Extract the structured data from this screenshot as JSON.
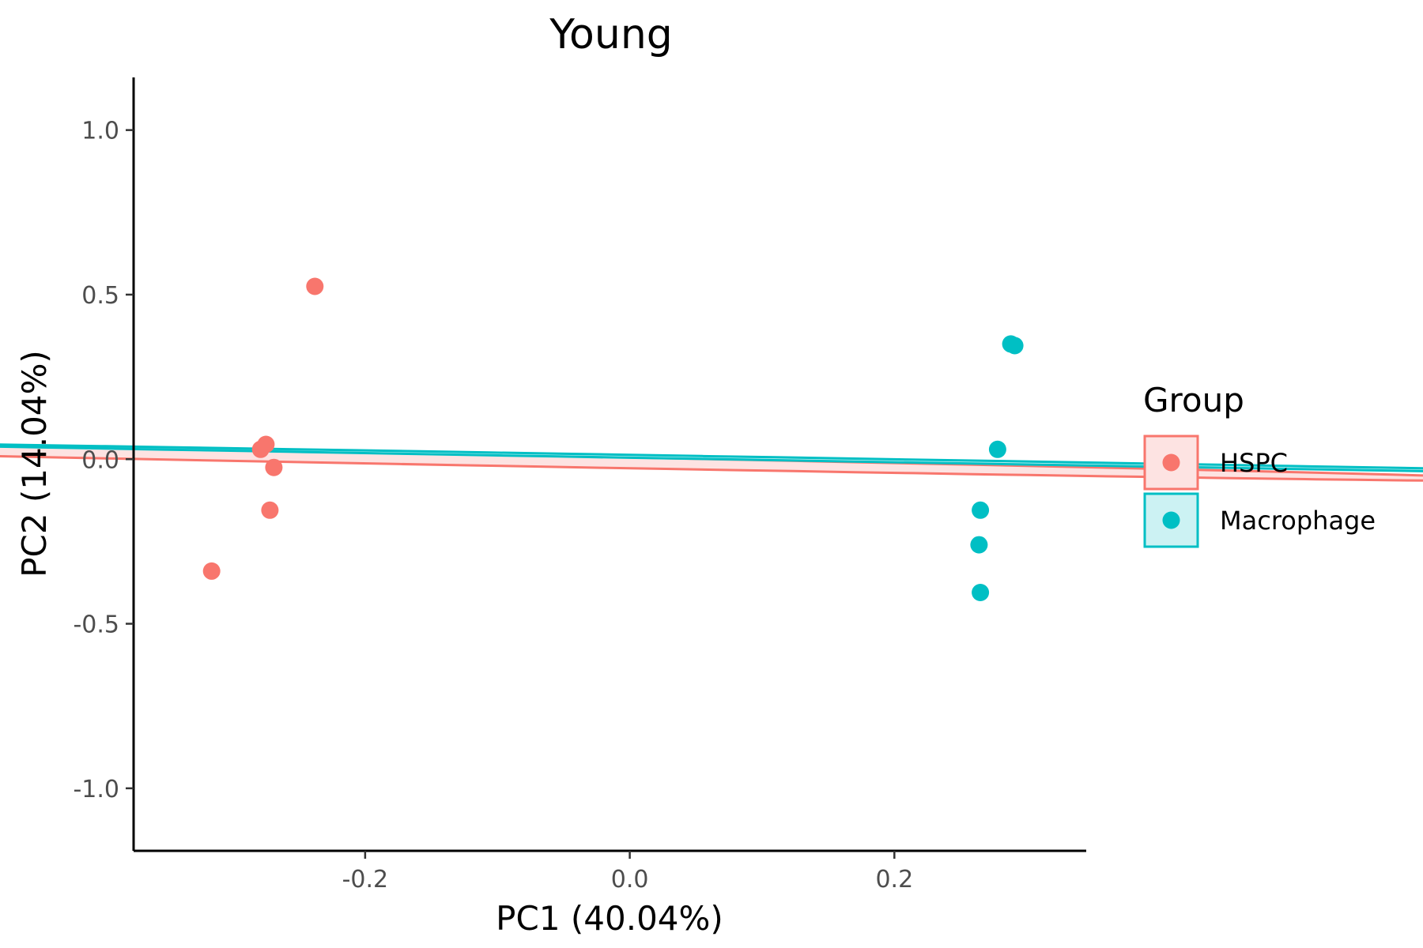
{
  "chart_data": {
    "type": "scatter",
    "title": "Young",
    "xlabel": "PC1 (40.04%)",
    "ylabel": "PC2 (14.04%)",
    "xlim": [
      -0.375,
      0.345
    ],
    "ylim": [
      -1.19,
      1.16
    ],
    "xticks": [
      -0.2,
      0.0,
      0.2
    ],
    "xtick_labels": [
      "-0.2",
      "0.0",
      "0.2"
    ],
    "yticks": [
      -1.0,
      -0.5,
      0.0,
      0.5,
      1.0
    ],
    "ytick_labels": [
      "-1.0",
      "-0.5",
      "0.0",
      "0.5",
      "1.0"
    ],
    "grid": false,
    "legend": {
      "title": "Group",
      "placement": "right"
    },
    "series": [
      {
        "name": "HSPC",
        "color": "#F8766D",
        "fill": "#FDE3E2",
        "points": [
          {
            "x": -0.238,
            "y": 0.525
          },
          {
            "x": -0.275,
            "y": 0.045
          },
          {
            "x": -0.279,
            "y": 0.03
          },
          {
            "x": -0.269,
            "y": -0.025
          },
          {
            "x": -0.272,
            "y": -0.155
          },
          {
            "x": -0.316,
            "y": -0.34
          }
        ],
        "ellipse": {
          "cx": -0.275,
          "cy": 0.01,
          "semi_major": 0.985,
          "semi_minor": 0.017,
          "angle_deg": 85.6
        }
      },
      {
        "name": "Macrophage",
        "color": "#00BFC4",
        "fill": "#CCF2F3",
        "points": [
          {
            "x": 0.288,
            "y": 0.35
          },
          {
            "x": 0.291,
            "y": 0.345
          },
          {
            "x": 0.278,
            "y": 0.03
          },
          {
            "x": 0.265,
            "y": -0.155
          },
          {
            "x": 0.264,
            "y": -0.26
          },
          {
            "x": 0.265,
            "y": -0.405
          }
        ],
        "ellipse": {
          "cx": 0.277,
          "cy": -0.01,
          "semi_major": 1.073,
          "semi_minor": 0.0045,
          "angle_deg": 86.1
        }
      }
    ]
  }
}
